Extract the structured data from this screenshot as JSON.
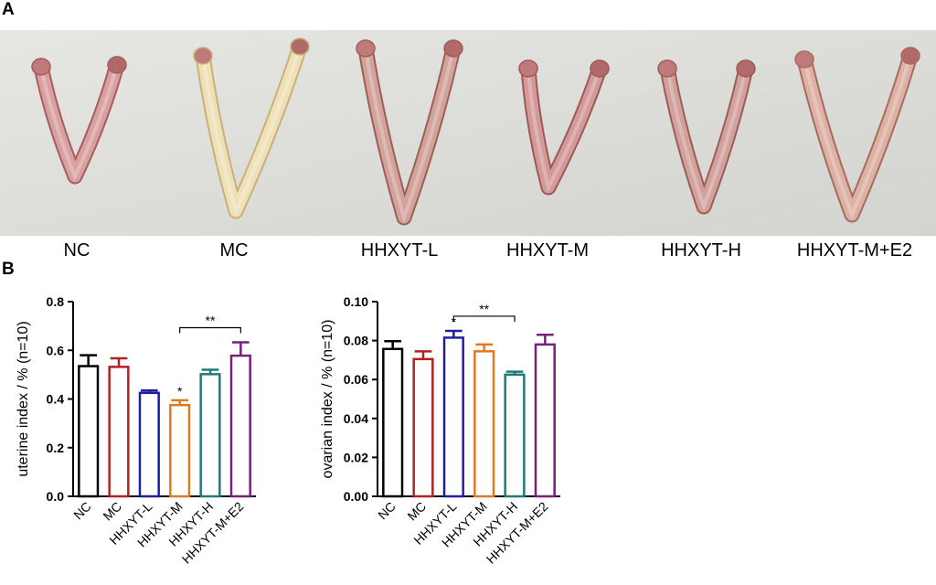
{
  "panel_labels": {
    "a": "A",
    "b": "B"
  },
  "photo": {
    "samples": [
      {
        "label": "NC"
      },
      {
        "label": "MC"
      },
      {
        "label": "HHXYT-L"
      },
      {
        "label": "HHXYT-M"
      },
      {
        "label": "HHXYT-H"
      },
      {
        "label": "HHXYT-M+E2"
      }
    ]
  },
  "chart_data": [
    {
      "type": "bar",
      "ylabel": "uterine index / % (n=10)",
      "categories": [
        "NC",
        "MC",
        "HHXYT-L",
        "HHXYT-M",
        "HHXYT-H",
        "HHXYT-M+E2"
      ],
      "values": [
        0.535,
        0.532,
        0.425,
        0.375,
        0.502,
        0.578
      ],
      "errors": [
        0.045,
        0.035,
        0.01,
        0.02,
        0.018,
        0.055
      ],
      "colors": [
        "#000000",
        "#b22222",
        "#1f1fa0",
        "#e07a1f",
        "#1f7a7a",
        "#7a1f7a"
      ],
      "ylim": [
        0.0,
        0.8
      ],
      "yticks": [
        "0.0",
        "0.2",
        "0.4",
        "0.6",
        "0.8"
      ],
      "annotations": [
        {
          "category": "HHXYT-M",
          "text": "*"
        }
      ],
      "brackets": [
        {
          "from": "HHXYT-M",
          "to": "HHXYT-M+E2",
          "text": "**"
        }
      ]
    },
    {
      "type": "bar",
      "ylabel": "ovarian index / % (n=10)",
      "categories": [
        "NC",
        "MC",
        "HHXYT-L",
        "HHXYT-M",
        "HHXYT-H",
        "HHXYT-M+E2"
      ],
      "values": [
        0.0757,
        0.0705,
        0.0815,
        0.0745,
        0.0625,
        0.078
      ],
      "errors": [
        0.004,
        0.004,
        0.0035,
        0.0035,
        0.0015,
        0.005
      ],
      "colors": [
        "#000000",
        "#b22222",
        "#1f1fa0",
        "#e07a1f",
        "#1f7a7a",
        "#7a1f7a"
      ],
      "ylim": [
        0.0,
        0.1
      ],
      "yticks": [
        "0.00",
        "0.02",
        "0.04",
        "0.06",
        "0.08",
        "0.10"
      ],
      "annotations": [
        {
          "category": "HHXYT-L",
          "text": "*"
        }
      ],
      "brackets": [
        {
          "from": "HHXYT-L",
          "to": "HHXYT-H",
          "text": "**"
        }
      ]
    }
  ]
}
